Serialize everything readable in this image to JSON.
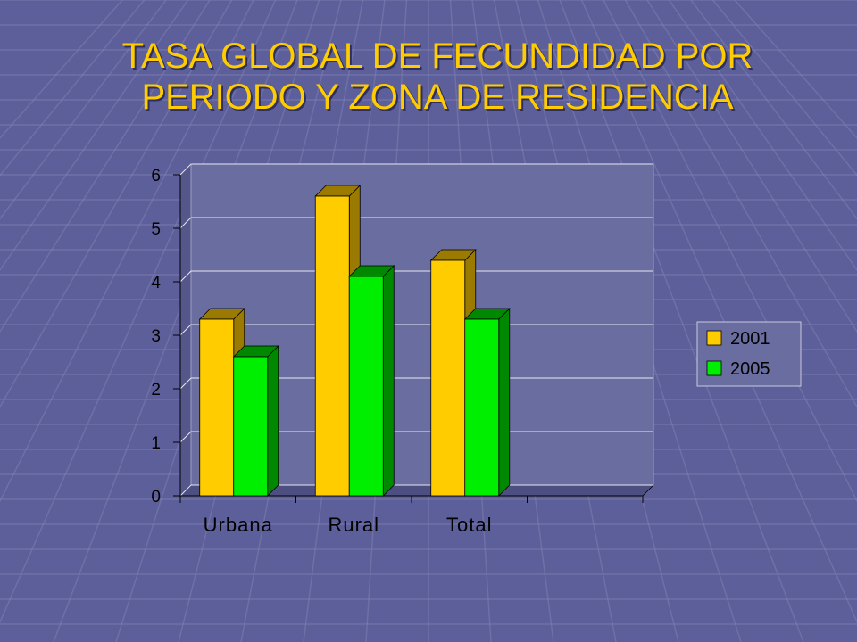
{
  "title": {
    "line1": "TASA GLOBAL DE FECUNDIDAD POR",
    "line2": "PERIODO Y ZONA DE RESIDENCIA"
  },
  "colors": {
    "background": "#5d5f9a",
    "title": "#ffcc00",
    "plot_area": "#6a6d9f"
  },
  "chart_data": {
    "type": "bar",
    "three_d": true,
    "title": "",
    "xlabel": "",
    "ylabel": "",
    "ylim": [
      0,
      6
    ],
    "yticks": [
      "0",
      "1",
      "2",
      "3",
      "4",
      "5",
      "6"
    ],
    "categories": [
      "Urbana",
      "Rural",
      "Total",
      ""
    ],
    "series": [
      {
        "name": "2001",
        "values": [
          3.3,
          5.6,
          4.4,
          null
        ],
        "color": "#ffcc00",
        "side": "#9a7a00"
      },
      {
        "name": "2005",
        "values": [
          2.6,
          4.1,
          3.3,
          null
        ],
        "color": "#00ee00",
        "side": "#008800"
      }
    ],
    "grid": true,
    "legend": "right"
  }
}
